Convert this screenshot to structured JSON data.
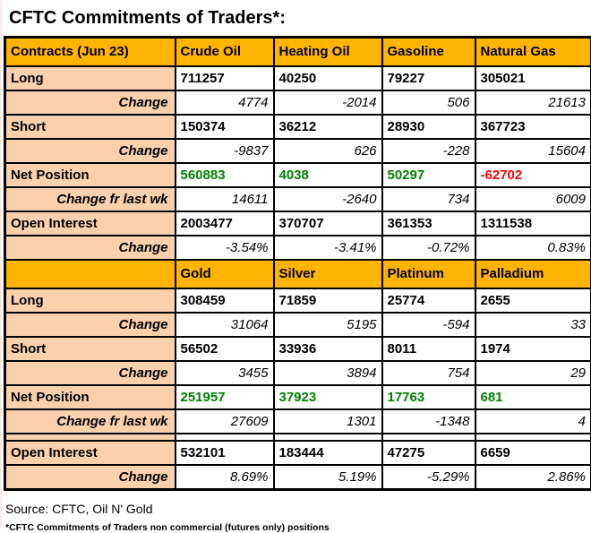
{
  "title": "CFTC Commitments of Traders*:",
  "colors": {
    "header_bg": "#FFB400",
    "label_bg": "#FBD0AC",
    "positive": "#008000",
    "negative": "#FF0000"
  },
  "table": {
    "sections": [
      {
        "header_label": "Contracts (Jun 23)",
        "columns": [
          "Crude Oil",
          "Heating Oil",
          "Gasoline",
          "Natural Gas"
        ],
        "rows": [
          {
            "label": "Long",
            "type": "main",
            "values": [
              "711257",
              "40250",
              "79227",
              "305021"
            ]
          },
          {
            "label": "Change",
            "type": "change",
            "values": [
              "4774",
              "-2014",
              "506",
              "21613"
            ]
          },
          {
            "label": "Short",
            "type": "main",
            "values": [
              "150374",
              "36212",
              "28930",
              "367723"
            ]
          },
          {
            "label": "Change",
            "type": "change",
            "values": [
              "-9837",
              "626",
              "-228",
              "15604"
            ]
          },
          {
            "label": "Net Position",
            "type": "net",
            "values": [
              "560883",
              "4038",
              "50297",
              "-62702"
            ]
          },
          {
            "label": "Change fr last wk",
            "type": "change",
            "values": [
              "14611",
              "-2640",
              "734",
              "6009"
            ]
          },
          {
            "label": "Open Interest",
            "type": "main",
            "values": [
              "2003477",
              "370707",
              "361353",
              "1311538"
            ]
          },
          {
            "label": "Change",
            "type": "change",
            "values": [
              "-3.54%",
              "-3.41%",
              "-0.72%",
              "0.83%"
            ]
          }
        ]
      },
      {
        "header_label": "",
        "columns": [
          "Gold",
          "Silver",
          "Platinum",
          "Palladium"
        ],
        "rows": [
          {
            "label": "Long",
            "type": "main",
            "values": [
              "308459",
              "71859",
              "25774",
              "2655"
            ]
          },
          {
            "label": "Change",
            "type": "change",
            "values": [
              "31064",
              "5195",
              "-594",
              "33"
            ]
          },
          {
            "label": "Short",
            "type": "main",
            "values": [
              "56502",
              "33936",
              "8011",
              "1974"
            ]
          },
          {
            "label": "Change",
            "type": "change",
            "values": [
              "3455",
              "3894",
              "754",
              "29"
            ]
          },
          {
            "label": "Net Position",
            "type": "net",
            "values": [
              "251957",
              "37923",
              "17763",
              "681"
            ]
          },
          {
            "label": "Change fr last wk",
            "type": "change",
            "values": [
              "27609",
              "1301",
              "-1348",
              "4"
            ]
          },
          {
            "label": "",
            "type": "spacer",
            "values": [
              "",
              "",
              "",
              ""
            ]
          },
          {
            "label": "Open Interest",
            "type": "main",
            "values": [
              "532101",
              "183444",
              "47275",
              "6659"
            ]
          },
          {
            "label": "Change",
            "type": "change",
            "values": [
              "8.69%",
              "5.19%",
              "-5.29%",
              "2.86%"
            ]
          }
        ]
      }
    ]
  },
  "footer": {
    "source_line": "Source: CFTC, Oil N' Gold",
    "footnote": "*CFTC Commitments of Traders non commercial (futures only) positions"
  }
}
